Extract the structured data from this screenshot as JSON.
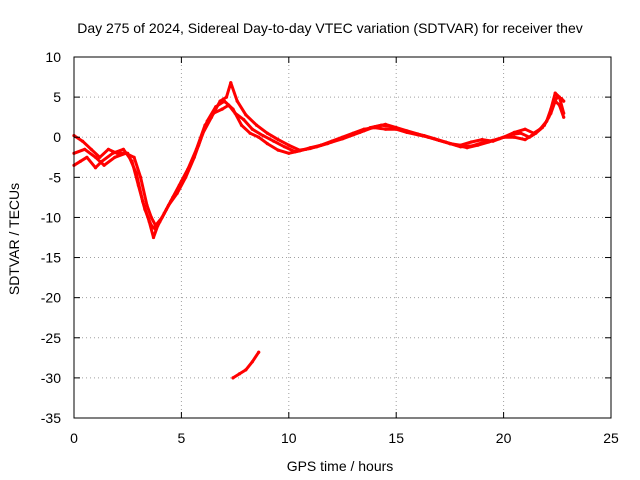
{
  "colors": {
    "series": "#ff0000",
    "grid": "#a0a0a0",
    "axis": "#000000",
    "background": "#ffffff"
  },
  "chart_data": {
    "type": "line",
    "title": "Day 275 of 2024, Sidereal Day-to-day VTEC variation (SDTVAR) for receiver thev",
    "xlabel": "GPS time / hours",
    "ylabel": "SDTVAR / TECUs",
    "xlim": [
      0,
      25
    ],
    "ylim": [
      -35,
      10
    ],
    "xticks": [
      0,
      5,
      10,
      15,
      20,
      25
    ],
    "yticks": [
      10,
      5,
      0,
      -5,
      -10,
      -15,
      -20,
      -25,
      -30,
      -35
    ],
    "grid": true,
    "legend": "none",
    "series": [
      {
        "name": "main-1",
        "x": [
          0.0,
          0.3,
          0.6,
          1.0,
          1.3,
          1.8,
          2.3,
          2.7,
          3.0,
          3.3,
          3.6,
          3.8,
          4.0,
          4.3,
          4.6,
          5.0,
          5.4,
          5.8,
          6.2,
          6.6,
          7.0,
          7.4,
          7.8,
          8.2,
          8.6,
          9.0,
          9.5,
          10.0,
          10.5,
          11.0,
          11.5,
          12.0,
          12.5,
          13.0,
          13.5,
          14.0,
          14.5,
          15.0,
          15.5,
          16.0,
          16.5,
          17.0,
          17.5,
          18.0,
          18.5,
          19.0,
          19.5,
          20.0,
          20.5,
          21.0,
          21.3,
          21.6,
          21.9,
          22.1,
          22.3,
          22.5,
          22.7,
          22.8
        ],
        "y": [
          -3.5,
          -3.0,
          -2.5,
          -3.8,
          -3.0,
          -2.0,
          -1.5,
          -3.0,
          -6.0,
          -9.0,
          -11.0,
          -11.5,
          -10.5,
          -9.0,
          -7.5,
          -5.5,
          -3.5,
          -1.0,
          2.0,
          3.8,
          4.5,
          3.5,
          1.5,
          0.5,
          0.0,
          -0.8,
          -1.6,
          -2.0,
          -1.7,
          -1.3,
          -1.0,
          -0.5,
          0.0,
          0.5,
          1.0,
          1.2,
          1.0,
          1.0,
          0.6,
          0.3,
          0.0,
          -0.4,
          -0.8,
          -1.0,
          -0.6,
          -0.3,
          -0.5,
          0.0,
          0.0,
          -0.3,
          0.2,
          0.8,
          1.5,
          2.5,
          4.0,
          5.0,
          4.8,
          4.5
        ]
      },
      {
        "name": "main-2",
        "x": [
          0.0,
          0.4,
          0.8,
          1.2,
          1.6,
          2.0,
          2.5,
          2.9,
          3.2,
          3.5,
          3.7,
          3.9,
          4.2,
          4.5,
          4.9,
          5.3,
          5.7,
          6.1,
          6.5,
          6.9,
          7.2,
          7.5,
          7.9,
          8.3,
          8.8,
          9.3,
          9.8,
          10.3,
          10.8,
          11.3,
          11.8,
          12.3,
          12.8,
          13.3,
          13.8,
          14.3,
          14.8,
          15.3,
          15.8,
          16.3,
          16.8,
          17.3,
          17.8,
          18.3,
          18.8,
          19.3,
          19.8,
          20.3,
          20.8,
          21.2,
          21.5,
          21.8,
          22.0,
          22.2,
          22.4,
          22.6,
          22.8
        ],
        "y": [
          0.2,
          -0.5,
          -1.5,
          -2.5,
          -1.5,
          -2.0,
          -2.0,
          -4.5,
          -8.0,
          -10.5,
          -12.5,
          -11.0,
          -9.5,
          -8.0,
          -6.0,
          -4.0,
          -1.5,
          1.5,
          3.0,
          3.5,
          4.0,
          3.0,
          2.2,
          1.0,
          0.2,
          -0.5,
          -1.2,
          -1.8,
          -1.5,
          -1.2,
          -0.8,
          -0.3,
          0.2,
          0.6,
          1.2,
          1.5,
          1.3,
          0.8,
          0.5,
          0.2,
          -0.2,
          -0.6,
          -1.0,
          -1.3,
          -1.0,
          -0.6,
          -0.2,
          0.3,
          0.5,
          0.0,
          0.5,
          1.2,
          2.0,
          3.0,
          4.5,
          4.0,
          2.5
        ]
      },
      {
        "name": "main-3",
        "x": [
          0.0,
          0.5,
          1.0,
          1.4,
          1.9,
          2.4,
          2.8,
          3.1,
          3.4,
          3.6,
          3.8,
          4.1,
          4.4,
          4.8,
          5.2,
          5.6,
          6.0,
          6.4,
          6.8,
          7.1,
          7.3,
          7.6,
          8.0,
          8.5,
          9.0,
          9.5,
          10.0,
          10.5,
          11.0,
          11.5,
          12.0,
          12.5,
          13.0,
          13.5,
          14.0,
          14.5,
          15.0,
          15.5,
          16.0,
          16.5,
          17.0,
          17.5,
          18.0,
          18.5,
          19.0,
          19.5,
          20.0,
          20.5,
          21.0,
          21.4,
          21.7,
          22.0,
          22.2,
          22.4,
          22.6,
          22.8
        ],
        "y": [
          -2.0,
          -1.5,
          -2.5,
          -3.5,
          -2.5,
          -2.0,
          -2.5,
          -5.0,
          -8.5,
          -10.0,
          -11.0,
          -10.0,
          -8.5,
          -7.0,
          -5.0,
          -2.5,
          0.5,
          2.5,
          4.5,
          5.0,
          6.8,
          4.5,
          2.8,
          1.5,
          0.5,
          -0.3,
          -1.0,
          -1.6,
          -1.4,
          -1.0,
          -0.6,
          -0.2,
          0.3,
          0.8,
          1.3,
          1.6,
          1.2,
          0.8,
          0.4,
          0.0,
          -0.4,
          -0.8,
          -1.2,
          -1.1,
          -0.7,
          -0.4,
          0.0,
          0.6,
          1.0,
          0.5,
          1.0,
          2.0,
          3.5,
          5.5,
          5.0,
          3.0
        ]
      },
      {
        "name": "segment",
        "x": [
          7.4,
          7.7,
          8.0,
          8.3,
          8.6
        ],
        "y": [
          -30.0,
          -29.5,
          -29.0,
          -28.0,
          -26.8
        ]
      }
    ]
  }
}
